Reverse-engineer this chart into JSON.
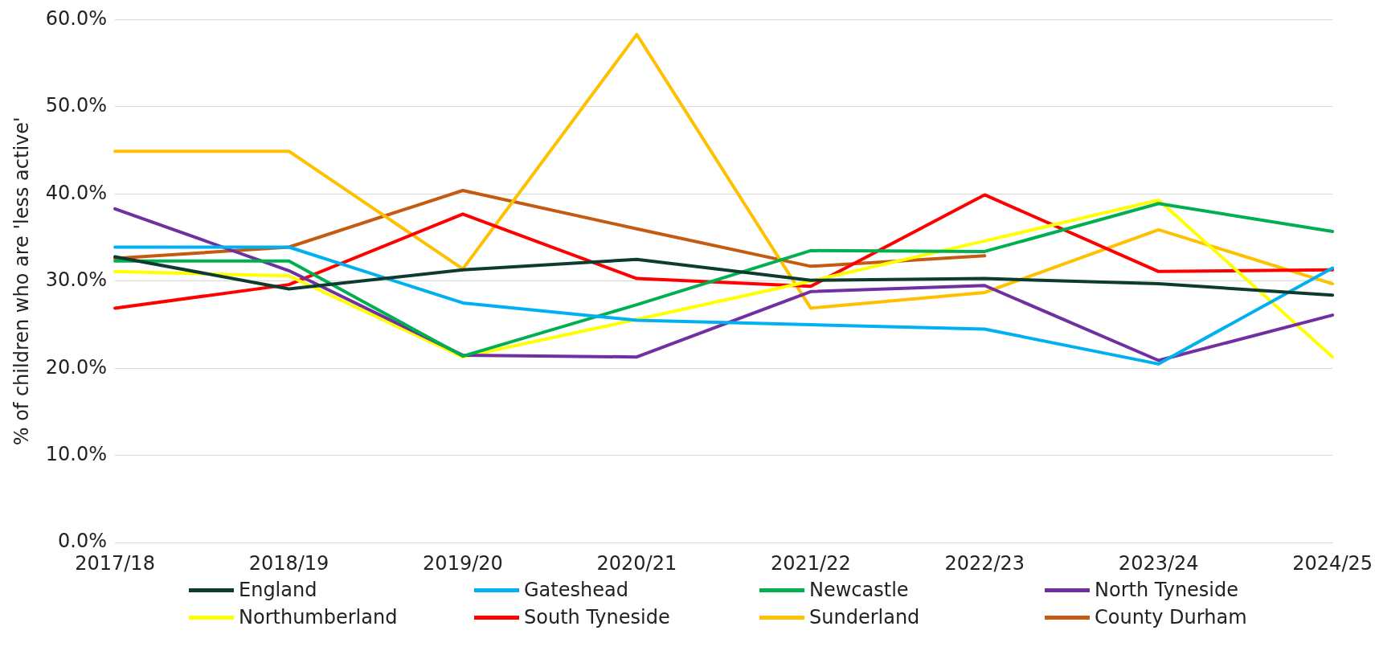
{
  "chart_data": {
    "type": "line",
    "ylabel": "% of children who are 'less active'",
    "categories": [
      "2017/18",
      "2018/19",
      "2019/20",
      "2020/21",
      "2021/22",
      "2022/23",
      "2023/24",
      "2024/25"
    ],
    "ylim": [
      0,
      60
    ],
    "yticks": [
      {
        "value": 0,
        "label": "0.0%"
      },
      {
        "value": 10,
        "label": "10.0%"
      },
      {
        "value": 20,
        "label": "20.0%"
      },
      {
        "value": 30,
        "label": "30.0%"
      },
      {
        "value": 40,
        "label": "40.0%"
      },
      {
        "value": 50,
        "label": "50.0%"
      },
      {
        "value": 60,
        "label": "60.0%"
      }
    ],
    "grid": "y",
    "legend": "bottom",
    "marker": "none",
    "line_style": "solid",
    "series": [
      {
        "name": "England",
        "color": "#0d3b2e",
        "values": [
          32.8,
          29.1,
          31.3,
          32.5,
          30.1,
          30.3,
          29.7,
          28.4
        ]
      },
      {
        "name": "Gateshead",
        "color": "#00b0f0",
        "values": [
          33.9,
          33.9,
          27.5,
          25.5,
          25.0,
          24.5,
          20.5,
          31.5
        ]
      },
      {
        "name": "Newcastle",
        "color": "#00b050",
        "values": [
          32.3,
          32.3,
          21.4,
          27.3,
          33.5,
          33.4,
          38.9,
          35.7
        ]
      },
      {
        "name": "North Tyneside",
        "color": "#7030a0",
        "values": [
          38.3,
          31.2,
          21.5,
          21.3,
          28.8,
          29.5,
          20.9,
          26.1
        ]
      },
      {
        "name": "Northumberland",
        "color": "#ffff00",
        "values": [
          31.1,
          30.6,
          21.3,
          25.6,
          30.0,
          34.6,
          39.3,
          21.3
        ]
      },
      {
        "name": "South Tyneside",
        "color": "#ff0000",
        "values": [
          26.9,
          29.6,
          37.7,
          30.3,
          29.4,
          39.9,
          31.1,
          31.3
        ]
      },
      {
        "name": "Sunderland",
        "color": "#ffc000",
        "values": [
          44.9,
          44.9,
          31.4,
          58.3,
          26.9,
          28.7,
          35.9,
          29.7
        ]
      },
      {
        "name": "County Durham",
        "color": "#c55a11",
        "values": [
          32.6,
          33.9,
          40.4,
          36.0,
          31.7,
          32.9,
          null,
          null
        ]
      }
    ]
  }
}
